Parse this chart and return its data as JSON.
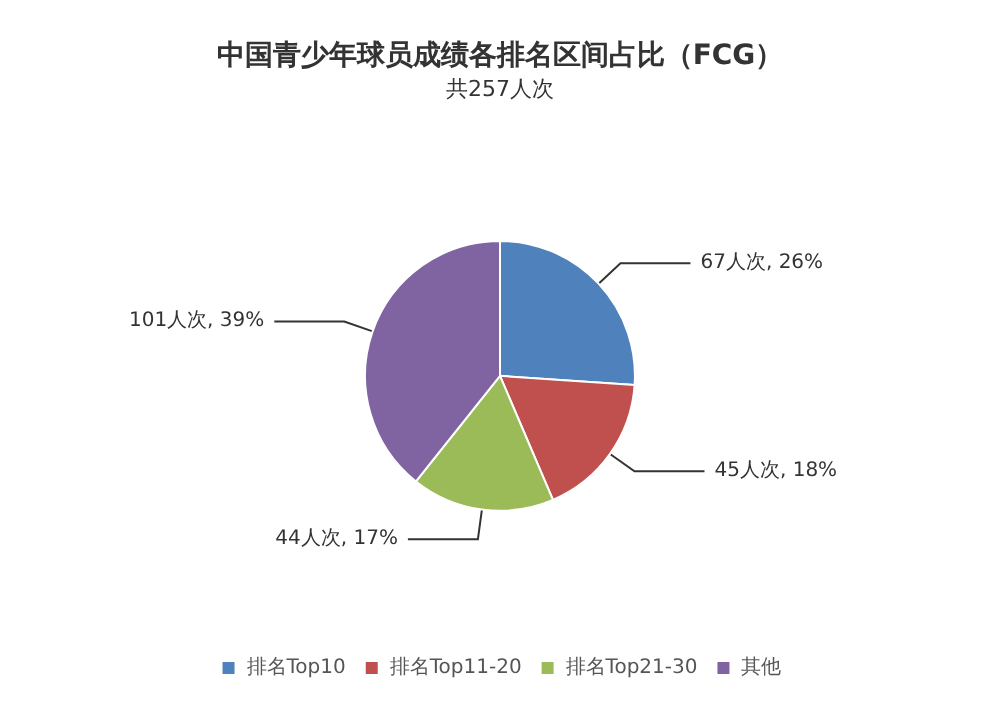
{
  "chart_data": {
    "type": "pie",
    "title": "中国青少年球员成绩各排名区间占比（FCG）",
    "subtitle": "共257人次",
    "categories": [
      "排名Top10",
      "排名Top11-20",
      "排名Top21-30",
      "其他"
    ],
    "values": [
      67,
      45,
      44,
      101
    ],
    "value_labels": [
      "67人次, 26%",
      "45人次, 18%",
      "44人次, 17%",
      "101人次, 39%"
    ],
    "colors": [
      "#4f81bd",
      "#c0504d",
      "#9bbb59",
      "#8064a2"
    ],
    "legend": "bottom"
  }
}
